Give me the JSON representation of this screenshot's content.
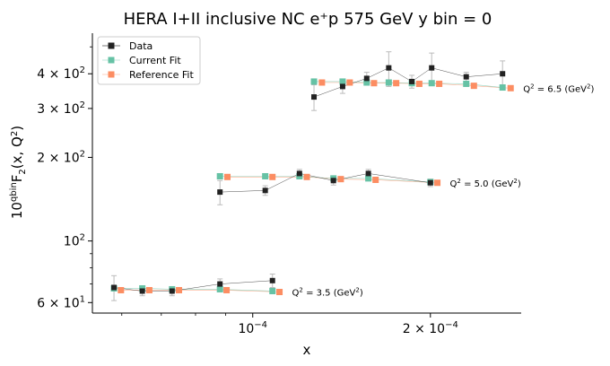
{
  "chart_data": {
    "type": "line",
    "title": "HERA I+II inclusive NC e⁺p 575 GeV y bin = 0",
    "xlabel": "x",
    "ylabel": "10^{q bin} F₂ (x, Q²)",
    "x_scale": "log",
    "y_scale": "log",
    "xlim": [
      5.35e-05,
      0.000285
    ],
    "ylim": [
      55,
      560
    ],
    "grid": false,
    "legend": {
      "placement": "top-left",
      "entries": [
        "Data",
        "Current Fit",
        "Reference Fit"
      ]
    },
    "x_ticks": [
      {
        "value": 0.0001,
        "label": "10",
        "exp": "−4"
      },
      {
        "value": 0.0002,
        "label": "2 × 10",
        "exp": "−4"
      }
    ],
    "y_ticks": [
      {
        "value": 60,
        "label": "6 × 10",
        "exp": "1"
      },
      {
        "value": 100,
        "label": "10",
        "exp": "2"
      },
      {
        "value": 200,
        "label": "2 × 10",
        "exp": "2"
      },
      {
        "value": 300,
        "label": "3 × 10",
        "exp": "2"
      },
      {
        "value": 400,
        "label": "4 × 10",
        "exp": "2"
      }
    ],
    "colors": {
      "data": "#222222",
      "current": "#66c2a5",
      "reference": "#fc8d62",
      "errorbar": "#bbbbbb"
    },
    "groups": [
      {
        "annotation": "Q² = 3.5 (GeV²)",
        "data": {
          "x": [
            5.82e-05,
            6.5e-05,
            7.3e-05,
            8.8e-05,
            0.000108
          ],
          "y": [
            68,
            66,
            66,
            70,
            72
          ],
          "err": [
            7,
            2.5,
            2.5,
            3,
            4
          ]
        },
        "current": {
          "x": [
            5.82e-05,
            6.5e-05,
            7.3e-05,
            8.8e-05,
            0.000108
          ],
          "y": [
            67.5,
            67.5,
            67,
            67,
            66
          ]
        },
        "reference": {
          "x": [
            5.98e-05,
            6.68e-05,
            7.5e-05,
            9.03e-05,
            0.000111
          ],
          "y": [
            66.5,
            66.5,
            66.5,
            66.5,
            65.5
          ]
        }
      },
      {
        "annotation": "Q² = 5.0 (GeV²)",
        "data": {
          "x": [
            8.8e-05,
            0.000105,
            0.00012,
            0.000137,
            0.000157,
            0.0002
          ],
          "y": [
            150,
            152,
            175,
            165,
            175,
            162
          ],
          "err": [
            15,
            6,
            6,
            6,
            6,
            5
          ]
        },
        "current": {
          "x": [
            8.8e-05,
            0.000105,
            0.00012,
            0.000137,
            0.000157,
            0.0002
          ],
          "y": [
            171,
            171,
            171,
            168,
            168,
            163
          ]
        },
        "reference": {
          "x": [
            9.06e-05,
            0.000108,
            0.0001235,
            0.000141,
            0.0001615,
            0.0002055
          ],
          "y": [
            170,
            170,
            170,
            167,
            166,
            162
          ]
        }
      },
      {
        "annotation": "Q² = 6.5 (GeV²)",
        "data": {
          "x": [
            0.000127,
            0.000142,
            0.000156,
            0.00017,
            0.000186,
            0.000201,
            0.00023,
            0.000265
          ],
          "y": [
            330,
            360,
            385,
            420,
            375,
            420,
            390,
            400
          ],
          "err": [
            35,
            20,
            20,
            60,
            20,
            55,
            15,
            45
          ]
        },
        "current": {
          "x": [
            0.000127,
            0.000142,
            0.000156,
            0.00017,
            0.000186,
            0.000201,
            0.00023,
            0.000265
          ],
          "y": [
            375,
            375,
            372,
            372,
            370,
            370,
            368,
            357
          ]
        },
        "reference": {
          "x": [
            0.000131,
            0.000146,
            0.0001605,
            0.000175,
            0.0001915,
            0.000207,
            0.000237,
            0.0002735
          ],
          "y": [
            372,
            372,
            370,
            370,
            368,
            368,
            362,
            355
          ]
        }
      }
    ]
  }
}
